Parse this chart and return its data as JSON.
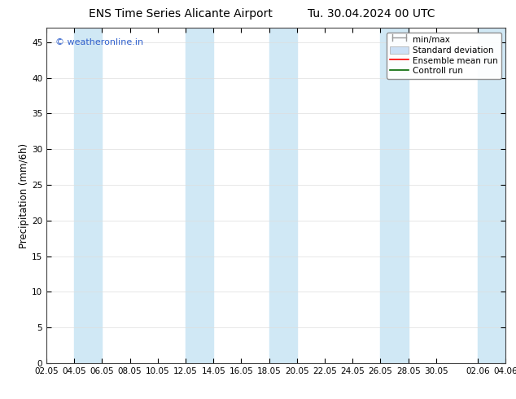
{
  "title_left": "ENS Time Series Alicante Airport",
  "title_right": "Tu. 30.04.2024 00 UTC",
  "ylabel": "Precipitation (mm/6h)",
  "ylim": [
    0,
    47
  ],
  "yticks": [
    0,
    5,
    10,
    15,
    20,
    25,
    30,
    35,
    40,
    45
  ],
  "xtick_labels": [
    "02.05",
    "04.05",
    "06.05",
    "08.05",
    "10.05",
    "12.05",
    "14.05",
    "16.05",
    "18.05",
    "20.05",
    "22.05",
    "24.05",
    "26.05",
    "28.05",
    "30.05",
    "02.06",
    "04.06"
  ],
  "xtick_positions": [
    0,
    2,
    4,
    6,
    8,
    10,
    12,
    14,
    16,
    18,
    20,
    22,
    24,
    26,
    28,
    31,
    33
  ],
  "xlim": [
    0,
    33
  ],
  "background_color": "#ffffff",
  "plot_bg_color": "#ffffff",
  "shaded_band_color": "#d0e8f5",
  "band_ranges": [
    [
      2,
      4
    ],
    [
      10,
      12
    ],
    [
      16,
      18
    ],
    [
      24,
      26
    ],
    [
      31,
      33
    ]
  ],
  "watermark_text": "© weatheronline.in",
  "watermark_color": "#3060cc",
  "legend_minmax_color": "#999999",
  "legend_std_color": "#cce0f5",
  "legend_mean_color": "#ff0000",
  "legend_ctrl_color": "#006600",
  "title_fontsize": 10,
  "tick_fontsize": 7.5,
  "ylabel_fontsize": 8.5,
  "watermark_fontsize": 8,
  "legend_fontsize": 7.5
}
